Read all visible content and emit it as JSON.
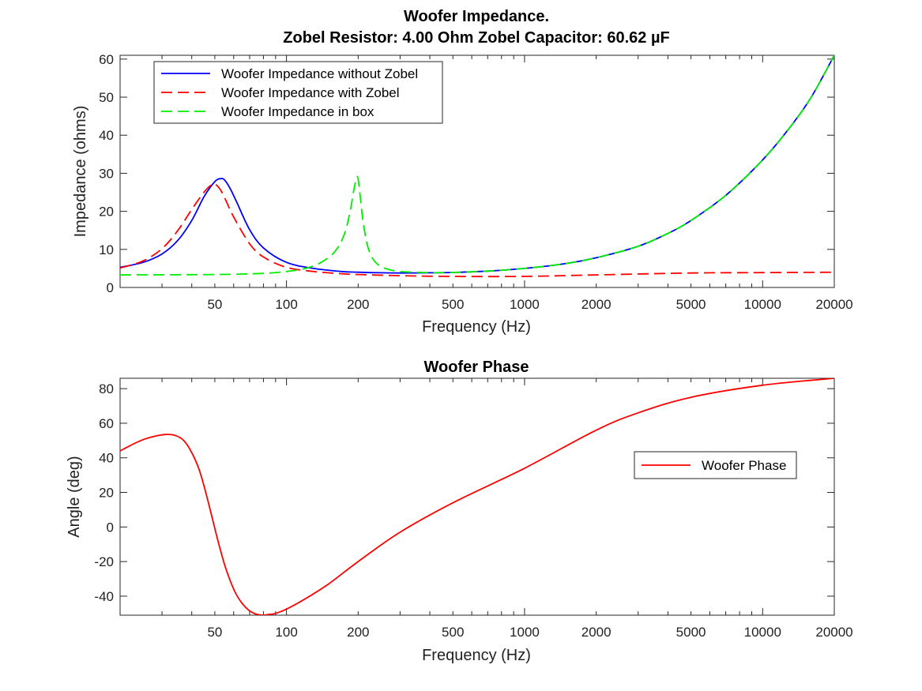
{
  "chart_data": [
    {
      "type": "line",
      "title": "Woofer Impedance.",
      "subtitle": "Zobel Resistor: 4.00 Ohm Zobel Capacitor: 60.62 µF",
      "xlabel": "Frequency (Hz)",
      "ylabel": "Impedance (ohms)",
      "xscale": "log",
      "xlim": [
        20,
        20000
      ],
      "ylim": [
        0,
        61
      ],
      "xticks": [
        50,
        100,
        200,
        500,
        1000,
        2000,
        5000,
        10000,
        20000
      ],
      "xtick_labels": [
        "50",
        "100",
        "200",
        "500",
        "1000",
        "2000",
        "5000",
        "10000",
        "20000"
      ],
      "yticks": [
        0,
        10,
        20,
        30,
        40,
        50,
        60
      ],
      "ytick_labels": [
        "0",
        "10",
        "20",
        "30",
        "40",
        "50",
        "60"
      ],
      "grid": false,
      "legend_position": "top-left",
      "series": [
        {
          "name": "Woofer Impedance without Zobel",
          "color": "#0000ff",
          "dash": "solid",
          "x": [
            20,
            25,
            30,
            35,
            40,
            45,
            50,
            53,
            55,
            58,
            62,
            70,
            80,
            100,
            130,
            170,
            200,
            250,
            300,
            400,
            500,
            700,
            1000,
            1500,
            2000,
            3000,
            4000,
            5000,
            7000,
            10000,
            13000,
            16000,
            20000
          ],
          "y": [
            5.3,
            6.6,
            8.8,
            12.4,
            17.6,
            23.8,
            27.8,
            28.6,
            28.2,
            26.0,
            22.2,
            15.2,
            10.4,
            6.6,
            5.0,
            4.2,
            4.0,
            3.85,
            3.8,
            3.85,
            3.95,
            4.3,
            5.0,
            6.3,
            7.8,
            10.8,
            14.2,
            17.6,
            24.2,
            33.5,
            42.0,
            50.0,
            61.0
          ]
        },
        {
          "name": "Woofer Impedance with Zobel",
          "color": "#ff0000",
          "dash": "dashed",
          "x": [
            20,
            25,
            30,
            35,
            40,
            45,
            48,
            50,
            53,
            56,
            60,
            70,
            80,
            100,
            130,
            170,
            200,
            300,
            500,
            1000,
            2000,
            5000,
            10000,
            20000
          ],
          "y": [
            5.1,
            7.0,
            10.2,
            15.0,
            20.5,
            25.0,
            26.8,
            27.2,
            25.5,
            22.5,
            18.5,
            11.5,
            8.0,
            5.3,
            4.2,
            3.6,
            3.4,
            3.1,
            2.9,
            2.9,
            3.3,
            3.8,
            3.9,
            4.0
          ]
        },
        {
          "name": "Woofer Impedance in box",
          "color": "#00ee00",
          "dash": "dashed",
          "x": [
            20,
            50,
            80,
            100,
            120,
            140,
            160,
            175,
            185,
            192,
            197,
            200,
            204,
            210,
            220,
            235,
            260,
            300,
            400,
            500,
            700,
            1000,
            1500,
            2000,
            3000,
            4000,
            5000,
            7000,
            10000,
            13000,
            16000,
            20000
          ],
          "y": [
            3.3,
            3.4,
            3.7,
            4.2,
            5.0,
            6.6,
            9.5,
            14.0,
            20.0,
            25.8,
            28.8,
            28.5,
            24.0,
            17.0,
            10.5,
            6.8,
            5.0,
            4.2,
            3.9,
            3.95,
            4.3,
            5.0,
            6.3,
            7.8,
            10.8,
            14.2,
            17.6,
            24.2,
            33.5,
            42.0,
            50.0,
            61.0
          ]
        }
      ]
    },
    {
      "type": "line",
      "title": "Woofer Phase",
      "xlabel": "Frequency (Hz)",
      "ylabel": "Angle (deg)",
      "xscale": "log",
      "xlim": [
        20,
        20000
      ],
      "ylim": [
        -51,
        86
      ],
      "xticks": [
        50,
        100,
        200,
        500,
        1000,
        2000,
        5000,
        10000,
        20000
      ],
      "xtick_labels": [
        "50",
        "100",
        "200",
        "500",
        "1000",
        "2000",
        "5000",
        "10000",
        "20000"
      ],
      "yticks": [
        -40,
        -20,
        0,
        20,
        40,
        60,
        80
      ],
      "ytick_labels": [
        "-40",
        "-20",
        "0",
        "20",
        "40",
        "60",
        "80"
      ],
      "grid": false,
      "legend_position": "right",
      "series": [
        {
          "name": "Woofer Phase",
          "color": "#ff0000",
          "dash": "solid",
          "x": [
            20,
            22,
            25,
            28,
            31,
            34,
            37,
            40,
            43,
            46,
            49,
            52,
            55,
            58,
            61,
            65,
            70,
            75,
            80,
            85,
            90,
            100,
            120,
            150,
            200,
            300,
            500,
            1000,
            2000,
            3000,
            5000,
            10000,
            20000
          ],
          "y": [
            44,
            47,
            50.5,
            52.5,
            53.5,
            53,
            50,
            43,
            33,
            19,
            4,
            -10,
            -22,
            -31,
            -38,
            -44,
            -48.5,
            -50.5,
            -51,
            -50.5,
            -50,
            -47.5,
            -41.5,
            -33,
            -20,
            -3,
            14,
            34,
            56,
            66,
            75,
            82,
            86
          ]
        }
      ]
    }
  ]
}
